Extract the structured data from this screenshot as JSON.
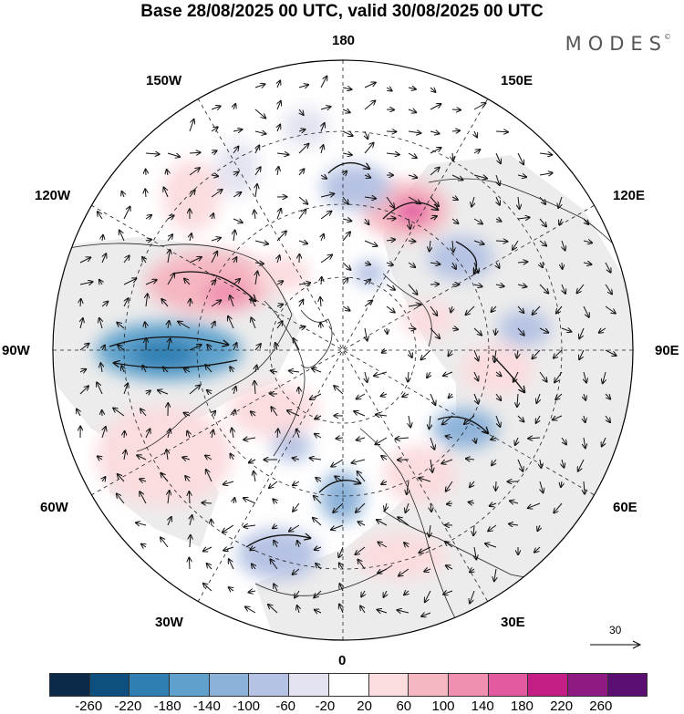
{
  "title": "Base 28/08/2025 00 UTC, valid 30/08/2025 00 UTC",
  "brand": "MODES",
  "brand_mark": "©",
  "longitude_labels": {
    "top": "180",
    "bottom": "0",
    "left": "90W",
    "right": "90E",
    "upper_left": "150W",
    "upper_right": "150E",
    "mid_upper_left": "120W",
    "mid_upper_right": "120E",
    "mid_lower_left": "60W",
    "mid_lower_right": "60E",
    "lower_left": "30W",
    "lower_right": "30E"
  },
  "reference_vector": {
    "value": "30",
    "icon": "arrow-right-icon"
  },
  "colorbar": {
    "colors": [
      "#0b2a4a",
      "#0d4f7e",
      "#2f7fb3",
      "#5fa1cc",
      "#8db2d9",
      "#b5c2e3",
      "#e3e3f1",
      "#ffffff",
      "#fbdcdf",
      "#f5b7c1",
      "#f08fb0",
      "#e45aa0",
      "#c31f86",
      "#8e1a82",
      "#5b0f73"
    ],
    "ticks": [
      "-260",
      "-220",
      "-180",
      "-140",
      "-100",
      "-60",
      "-20",
      "20",
      "60",
      "100",
      "140",
      "180",
      "220",
      "260"
    ]
  }
}
